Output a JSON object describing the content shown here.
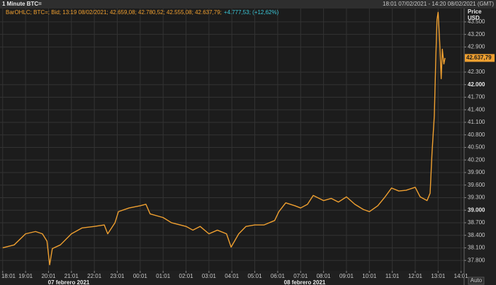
{
  "window_title": "1 Minute BTC=",
  "time_range": "18:01 07/02/2021 - 14:20 08/02/2021 (GMT)",
  "chart_data": {
    "type": "line",
    "legend_text": "BarOHLC; BTC=; Bid; 13:19 08/02/2021; 42.659,08; 42.780,52; 42.555,08; 42.637,79;",
    "change_text": "+4.777,53; (+12,62%)",
    "y_axis_title": [
      "Price",
      "USD"
    ],
    "last_price": {
      "value": 42637.79,
      "label": "42.637,79"
    },
    "auto_button": "Auto",
    "date_labels": [
      "07 febrero 2021",
      "08 febrero 2021"
    ],
    "grid": true,
    "xlim": [
      "17:54",
      "14:09"
    ],
    "xticks": [
      "18:01",
      "19:01",
      "20:01",
      "21:01",
      "22:01",
      "23:01",
      "00:01",
      "01:01",
      "02:01",
      "03:01",
      "04:01",
      "05:01",
      "06:01",
      "07:01",
      "08:01",
      "09:01",
      "10:01",
      "11:01",
      "12:01",
      "13:01",
      "14:01"
    ],
    "ylim": [
      37550,
      43820
    ],
    "yticks": [
      {
        "value": 37800,
        "label": "37.800"
      },
      {
        "value": 38100,
        "label": "38.100"
      },
      {
        "value": 38400,
        "label": "38.400"
      },
      {
        "value": 38700,
        "label": "38.700"
      },
      {
        "value": 39000,
        "label": "39.000"
      },
      {
        "value": 39300,
        "label": "39.300"
      },
      {
        "value": 39600,
        "label": "39.600"
      },
      {
        "value": 39900,
        "label": "39.900"
      },
      {
        "value": 40200,
        "label": "40.200"
      },
      {
        "value": 40500,
        "label": "40.500"
      },
      {
        "value": 40800,
        "label": "40.800"
      },
      {
        "value": 41100,
        "label": "41.100"
      },
      {
        "value": 41400,
        "label": "41.400"
      },
      {
        "value": 41700,
        "label": "41.700"
      },
      {
        "value": 42000,
        "label": "42.000"
      },
      {
        "value": 42300,
        "label": "42.300"
      },
      {
        "value": 42900,
        "label": "42.900"
      },
      {
        "value": 43200,
        "label": "43.200"
      },
      {
        "value": 43500,
        "label": "43.500"
      }
    ],
    "series": [
      {
        "name": "BTC=",
        "color": "#f0a030",
        "x": [
          "18:01",
          "18:31",
          "19:01",
          "19:27",
          "19:45",
          "19:57",
          "20:04",
          "20:11",
          "20:32",
          "21:01",
          "21:29",
          "22:01",
          "22:27",
          "22:36",
          "22:55",
          "23:04",
          "23:32",
          "00:01",
          "00:16",
          "00:27",
          "01:01",
          "01:23",
          "02:01",
          "02:19",
          "02:38",
          "03:01",
          "03:23",
          "03:47",
          "03:59",
          "04:19",
          "04:38",
          "05:01",
          "05:25",
          "05:53",
          "06:04",
          "06:22",
          "06:46",
          "07:01",
          "07:19",
          "07:34",
          "08:01",
          "08:21",
          "08:40",
          "09:01",
          "09:23",
          "09:45",
          "10:01",
          "10:23",
          "10:42",
          "10:59",
          "11:18",
          "11:37",
          "12:01",
          "12:14",
          "12:32",
          "12:40",
          "12:45",
          "12:51",
          "12:55",
          "12:58",
          "13:01",
          "13:05",
          "13:09",
          "13:12",
          "13:16",
          "13:19"
        ],
        "values": [
          38100,
          38170,
          38435,
          38490,
          38435,
          38260,
          37694,
          38082,
          38170,
          38435,
          38576,
          38612,
          38647,
          38435,
          38700,
          38965,
          39053,
          39106,
          39141,
          38912,
          38824,
          38700,
          38612,
          38523,
          38612,
          38435,
          38523,
          38435,
          38118,
          38435,
          38612,
          38647,
          38647,
          38753,
          38965,
          39176,
          39106,
          39053,
          39141,
          39353,
          39229,
          39282,
          39194,
          39318,
          39141,
          39018,
          38965,
          39106,
          39318,
          39529,
          39459,
          39476,
          39547,
          39318,
          39229,
          39406,
          40376,
          41259,
          42670,
          43553,
          43729,
          43024,
          42141,
          42847,
          42494,
          42637.79
        ]
      }
    ]
  }
}
